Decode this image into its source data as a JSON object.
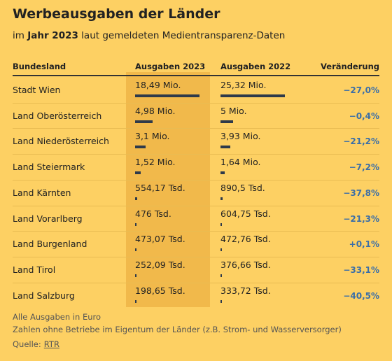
{
  "header": {
    "title": "Werbeausgaben der Länder",
    "subtitle": [
      "im ",
      "Jahr 2023",
      " laut gemeldeten Medientransparenz-Daten"
    ]
  },
  "table": {
    "columns": [
      "Bundesland",
      "Ausgaben 2023",
      "Ausgaben 2022",
      "Veränderung"
    ],
    "rows": [
      [
        "Stadt Wien",
        {
          "value": 18490000,
          "label": "18,49 Mio."
        },
        {
          "value": 25320000,
          "label": "25,32 Mio."
        },
        "−27,0%"
      ],
      [
        "Land Oberösterreich",
        {
          "value": 4980000,
          "label": "4,98 Mio."
        },
        {
          "value": 5000000,
          "label": "5 Mio."
        },
        "−0,4%"
      ],
      [
        "Land Niederösterreich",
        {
          "value": 3100000,
          "label": "3,1 Mio."
        },
        {
          "value": 3930000,
          "label": "3,93 Mio."
        },
        "−21,2%"
      ],
      [
        "Land Steiermark",
        {
          "value": 1520000,
          "label": "1,52 Mio."
        },
        {
          "value": 1640000,
          "label": "1,64 Mio."
        },
        "−7,2%"
      ],
      [
        "Land Kärnten",
        {
          "value": 554170,
          "label": "554,17 Tsd."
        },
        {
          "value": 890500,
          "label": "890,5 Tsd."
        },
        "−37,8%"
      ],
      [
        "Land Vorarlberg",
        {
          "value": 476000,
          "label": "476 Tsd."
        },
        {
          "value": 604750,
          "label": "604,75 Tsd."
        },
        "−21,3%"
      ],
      [
        "Land Burgenland",
        {
          "value": 473070,
          "label": "473,07 Tsd."
        },
        {
          "value": 472760,
          "label": "472,76 Tsd."
        },
        "+0,1%"
      ],
      [
        "Land Tirol",
        {
          "value": 252090,
          "label": "252,09 Tsd."
        },
        {
          "value": 376660,
          "label": "376,66 Tsd."
        },
        "−33,1%"
      ],
      [
        "Land Salzburg",
        {
          "value": 198650,
          "label": "198,65 Tsd."
        },
        {
          "value": 333720,
          "label": "333,72 Tsd."
        },
        "−40,5%"
      ]
    ]
  },
  "footer": {
    "notes": [
      "Alle Ausgaben in Euro",
      "Zahlen ohne Betriebe im Eigentum der Länder (z.B. Strom- und Wasserversorger)"
    ],
    "source_label": "Quelle:",
    "source_link": "RTR"
  }
}
